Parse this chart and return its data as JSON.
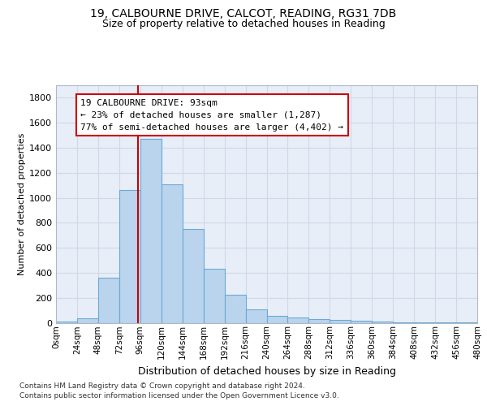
{
  "title_line1": "19, CALBOURNE DRIVE, CALCOT, READING, RG31 7DB",
  "title_line2": "Size of property relative to detached houses in Reading",
  "xlabel": "Distribution of detached houses by size in Reading",
  "ylabel": "Number of detached properties",
  "bar_values": [
    10,
    35,
    360,
    1060,
    1470,
    1110,
    750,
    435,
    225,
    110,
    55,
    45,
    30,
    20,
    15,
    8,
    5,
    3,
    2,
    1
  ],
  "bin_starts": [
    0,
    24,
    48,
    72,
    96,
    120,
    144,
    168,
    192,
    216,
    240,
    264,
    288,
    312,
    336,
    360,
    384,
    408,
    432,
    456
  ],
  "bin_width": 24,
  "tick_labels": [
    "0sqm",
    "24sqm",
    "48sqm",
    "72sqm",
    "96sqm",
    "120sqm",
    "144sqm",
    "168sqm",
    "192sqm",
    "216sqm",
    "240sqm",
    "264sqm",
    "288sqm",
    "312sqm",
    "336sqm",
    "360sqm",
    "384sqm",
    "408sqm",
    "432sqm",
    "456sqm",
    "480sqm"
  ],
  "bar_color": "#bad4ee",
  "bar_edge_color": "#6aaad4",
  "property_line_x": 93,
  "annotation_line1": "19 CALBOURNE DRIVE: 93sqm",
  "annotation_line2": "← 23% of detached houses are smaller (1,287)",
  "annotation_line3": "77% of semi-detached houses are larger (4,402) →",
  "annotation_box_color": "#ffffff",
  "annotation_box_edge": "#cc0000",
  "annotation_line_color": "#cc0000",
  "grid_color": "#d0d8e8",
  "background_color": "#e8eef8",
  "ylim": [
    0,
    1900
  ],
  "yticks": [
    0,
    200,
    400,
    600,
    800,
    1000,
    1200,
    1400,
    1600,
    1800
  ],
  "xlim": [
    0,
    480
  ],
  "footnote_line1": "Contains HM Land Registry data © Crown copyright and database right 2024.",
  "footnote_line2": "Contains public sector information licensed under the Open Government Licence v3.0."
}
